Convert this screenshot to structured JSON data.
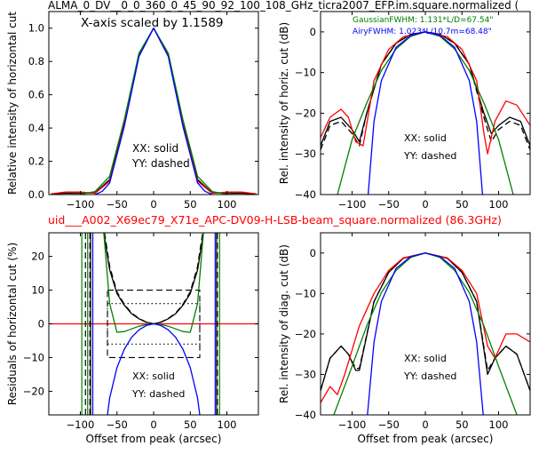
{
  "figure": {
    "top_title": "ALMA_0_DV__0_0_360_0_45_90_92_100_108_GHz_ticra2007_EFP.im.square.normalized (",
    "mid_title": "uid___A002_X69ec79_X71e_APC-DV09-H-LSB-beam_square.normalized (86.3GHz)",
    "colors": {
      "black": "#000000",
      "red": "#ff0000",
      "green": "#008000",
      "blue": "#0000ff",
      "title_red": "#ff0000"
    }
  },
  "chart_data": [
    {
      "id": "horizontal-cut",
      "type": "line",
      "ylabel": "Relative intensity of horizontal cut",
      "xlim": [
        -143,
        143
      ],
      "ylim": [
        0,
        1.1
      ],
      "xticks": [
        -100,
        -50,
        0,
        50,
        100
      ],
      "yticks": [
        0.0,
        0.2,
        0.4,
        0.6,
        0.8,
        1.0
      ],
      "xtick_labels": [
        "−100",
        "−50",
        "0",
        "50",
        "100"
      ],
      "ytick_labels": [
        "0.0",
        "0.2",
        "0.4",
        "0.6",
        "0.8",
        "1.0"
      ],
      "annotations": [
        "X-axis scaled by 1.1589",
        "XX: solid",
        "YY: dashed"
      ],
      "series": [
        {
          "color": "#000000",
          "style": "solid",
          "x": [
            -140,
            -120,
            -100,
            -80,
            -60,
            -40,
            -20,
            0,
            20,
            40,
            60,
            80,
            100,
            120,
            140
          ],
          "y": [
            0.003,
            0.008,
            0.01,
            0.01,
            0.09,
            0.43,
            0.84,
            1.0,
            0.84,
            0.43,
            0.09,
            0.01,
            0.01,
            0.008,
            0.003
          ]
        },
        {
          "color": "#ff0000",
          "style": "solid",
          "x": [
            -140,
            -120,
            -100,
            -80,
            -60,
            -40,
            -20,
            0,
            20,
            40,
            60,
            80,
            100,
            120,
            140
          ],
          "y": [
            0.005,
            0.015,
            0.015,
            0.008,
            0.08,
            0.42,
            0.84,
            1.0,
            0.84,
            0.42,
            0.08,
            0.008,
            0.015,
            0.015,
            0.005
          ]
        },
        {
          "color": "#008000",
          "style": "solid",
          "x": [
            -140,
            -120,
            -100,
            -80,
            -60,
            -40,
            -20,
            0,
            20,
            40,
            60,
            80,
            100,
            120,
            140
          ],
          "y": [
            0.0,
            0.0,
            0.002,
            0.018,
            0.11,
            0.45,
            0.85,
            1.0,
            0.85,
            0.45,
            0.11,
            0.018,
            0.002,
            0.0,
            0.0
          ]
        },
        {
          "color": "#0000ff",
          "style": "solid",
          "x": [
            -80,
            -70,
            -60,
            -40,
            -20,
            0,
            20,
            40,
            60,
            70,
            80
          ],
          "y": [
            0.0,
            0.02,
            0.07,
            0.41,
            0.83,
            1.0,
            0.83,
            0.41,
            0.07,
            0.02,
            0.0
          ]
        }
      ]
    },
    {
      "id": "horizontal-db",
      "type": "line",
      "ylabel": "Rel. intensity of horiz. cut (dB)",
      "xlim": [
        -143,
        143
      ],
      "ylim": [
        -40,
        5
      ],
      "xticks": [
        -100,
        -50,
        0,
        50,
        100
      ],
      "yticks": [
        -40,
        -30,
        -20,
        -10,
        0
      ],
      "xtick_labels": [
        "−100",
        "−50",
        "0",
        "50",
        "100"
      ],
      "ytick_labels": [
        "−40",
        "−30",
        "−20",
        "−10",
        "0"
      ],
      "annotations": [
        "GaussianFWHM: 1.131*L/D=67.54\"",
        "AiryFWHM: 1.023*L/10.7m=68.48\"",
        "XX: solid",
        "YY: dashed"
      ],
      "series": [
        {
          "color": "#000000",
          "style": "solid",
          "x": [
            -143,
            -130,
            -115,
            -100,
            -90,
            -80,
            -60,
            -40,
            -20,
            0,
            20,
            40,
            60,
            80,
            90,
            100,
            115,
            130,
            143
          ],
          "y": [
            -28,
            -22,
            -21,
            -24,
            -27,
            -20,
            -8,
            -2.8,
            -0.6,
            0,
            -0.6,
            -2.8,
            -8,
            -20,
            -25,
            -23,
            -21,
            -22,
            -28
          ]
        },
        {
          "color": "#000000",
          "style": "dashed",
          "x": [
            -143,
            -130,
            -115,
            -100,
            -90,
            -80,
            -60,
            -40,
            -20,
            0,
            20,
            40,
            60,
            80,
            90,
            100,
            115,
            130,
            143
          ],
          "y": [
            -29,
            -23,
            -22,
            -25,
            -28,
            -20,
            -8,
            -2.8,
            -0.6,
            0,
            -0.6,
            -2.8,
            -8,
            -21,
            -27,
            -24,
            -22,
            -23,
            -29
          ]
        },
        {
          "color": "#ff0000",
          "style": "solid",
          "x": [
            -143,
            -130,
            -115,
            -105,
            -95,
            -85,
            -70,
            -50,
            -30,
            0,
            30,
            50,
            70,
            80,
            85,
            95,
            110,
            125,
            143
          ],
          "y": [
            -26,
            -21,
            -19,
            -21,
            -27,
            -28,
            -12,
            -4.3,
            -1.2,
            0,
            -1.2,
            -4.3,
            -12,
            -25,
            -30,
            -22,
            -17,
            -18,
            -23
          ]
        },
        {
          "color": "#008000",
          "style": "solid",
          "x": [
            -120,
            -100,
            -80,
            -60,
            -40,
            -20,
            0,
            20,
            40,
            60,
            80,
            100,
            120
          ],
          "y": [
            -40,
            -26.5,
            -17.5,
            -9.5,
            -4.2,
            -1.1,
            0,
            -1.1,
            -4.2,
            -9.5,
            -17.5,
            -26.5,
            -40
          ]
        },
        {
          "color": "#0000ff",
          "style": "solid",
          "x": [
            -78,
            -70,
            -60,
            -40,
            -20,
            0,
            20,
            40,
            60,
            70,
            78
          ],
          "y": [
            -40,
            -22,
            -12,
            -3.8,
            -0.9,
            0,
            -0.9,
            -3.8,
            -12,
            -22,
            -40
          ]
        }
      ]
    },
    {
      "id": "horizontal-residuals",
      "type": "line",
      "ylabel": "Residuals of horizontal cut (%)",
      "xlabel": "Offset from peak (arcsec)",
      "xlim": [
        -143,
        143
      ],
      "ylim": [
        -27,
        27
      ],
      "xticks": [
        -100,
        -50,
        0,
        50,
        100
      ],
      "yticks": [
        -20,
        -10,
        0,
        10,
        20
      ],
      "xtick_labels": [
        "−100",
        "−50",
        "0",
        "50",
        "100"
      ],
      "ytick_labels": [
        "−20",
        "−10",
        "0",
        "10",
        "20"
      ],
      "annotations": [
        "XX: solid",
        "YY: dashed"
      ],
      "reference_line": {
        "color": "#ff0000",
        "y": 0
      },
      "boxes": [
        {
          "style": "dashed",
          "x": [
            -63,
            63
          ],
          "y": [
            -10,
            10
          ]
        },
        {
          "style": "dotted",
          "x": [
            -63,
            63
          ],
          "y": [
            -6,
            6
          ]
        }
      ],
      "vertical_lines": [
        {
          "color": "#000000",
          "style": "dashed",
          "x": -93
        },
        {
          "color": "#000000",
          "style": "dashed",
          "x": -87
        },
        {
          "color": "#000000",
          "style": "solid",
          "x": -86
        },
        {
          "color": "#008000",
          "style": "solid",
          "x": -98
        },
        {
          "color": "#008000",
          "style": "solid",
          "x": -90
        },
        {
          "color": "#0000ff",
          "style": "solid",
          "x": -83
        },
        {
          "color": "#000000",
          "style": "dashed",
          "x": 87
        },
        {
          "color": "#000000",
          "style": "solid",
          "x": 86
        },
        {
          "color": "#008000",
          "style": "solid",
          "x": 90
        },
        {
          "color": "#0000ff",
          "style": "solid",
          "x": 84
        }
      ],
      "series": [
        {
          "color": "#000000",
          "style": "solid",
          "x": [
            -68,
            -60,
            -50,
            -40,
            -30,
            -20,
            -10,
            0,
            10,
            20,
            30,
            40,
            50,
            60,
            68
          ],
          "y": [
            27,
            16,
            9,
            5.5,
            3,
            1.5,
            0.5,
            0,
            0.5,
            1.5,
            3,
            5.5,
            9,
            16,
            27
          ]
        },
        {
          "color": "#000000",
          "style": "dashed",
          "x": [
            -67,
            -60,
            -50,
            -40,
            -30,
            -20,
            -10,
            0,
            10,
            20,
            30,
            40,
            50,
            60,
            67
          ],
          "y": [
            27,
            17,
            9.5,
            5.8,
            3.2,
            1.6,
            0.5,
            0,
            0.5,
            1.6,
            3.2,
            5.8,
            9.5,
            17,
            27
          ]
        },
        {
          "color": "#008000",
          "style": "solid",
          "x": [
            -68,
            -60,
            -50,
            -40,
            -30,
            -20,
            -10,
            0,
            10,
            20,
            30,
            40,
            50,
            60,
            68
          ],
          "y": [
            27,
            6,
            -2.5,
            -2.3,
            -1.5,
            -0.7,
            -0.2,
            0,
            -0.2,
            -0.7,
            -1.5,
            -2.3,
            -2.5,
            6,
            27
          ]
        },
        {
          "color": "#0000ff",
          "style": "solid",
          "x": [
            -63,
            -60,
            -50,
            -40,
            -30,
            -20,
            -10,
            0,
            10,
            20,
            30,
            40,
            50,
            60,
            63
          ],
          "y": [
            -27,
            -22,
            -13,
            -7.5,
            -4,
            -1.8,
            -0.5,
            0,
            -0.5,
            -1.8,
            -4,
            -7.5,
            -13,
            -22,
            -27
          ]
        }
      ]
    },
    {
      "id": "diagonal-db",
      "type": "line",
      "ylabel": "Rel. intensity of diag. cut (dB)",
      "xlabel": "Offset from peak (arcsec)",
      "xlim": [
        -143,
        143
      ],
      "ylim": [
        -40,
        5
      ],
      "xticks": [
        -100,
        -50,
        0,
        50,
        100
      ],
      "yticks": [
        -40,
        -30,
        -20,
        -10,
        0
      ],
      "xtick_labels": [
        "−100",
        "−50",
        "0",
        "50",
        "100"
      ],
      "ytick_labels": [
        "−40",
        "−30",
        "−20",
        "−10",
        "0"
      ],
      "annotations": [
        "XX: solid",
        "YY: dashed"
      ],
      "series": [
        {
          "color": "#000000",
          "style": "solid",
          "x": [
            -143,
            -130,
            -115,
            -105,
            -95,
            -90,
            -70,
            -50,
            -30,
            0,
            30,
            50,
            70,
            85,
            95,
            110,
            125,
            143
          ],
          "y": [
            -34,
            -26,
            -23,
            -25,
            -29,
            -29,
            -12,
            -4.8,
            -1.3,
            0,
            -1.3,
            -4.8,
            -12,
            -30,
            -26,
            -23,
            -25,
            -34
          ]
        },
        {
          "color": "#000000",
          "style": "dashed",
          "x": [
            -143,
            -130,
            -115,
            -105,
            -95,
            -90,
            -70,
            -50,
            -30,
            0,
            30,
            50,
            70,
            85,
            95,
            110,
            125,
            143
          ],
          "y": [
            -34,
            -26,
            -23,
            -25,
            -28.5,
            -28.5,
            -12,
            -4.8,
            -1.3,
            0,
            -1.3,
            -4.8,
            -12,
            -29,
            -26,
            -23,
            -25,
            -34
          ]
        },
        {
          "color": "#ff0000",
          "style": "solid",
          "x": [
            -143,
            -130,
            -120,
            -110,
            -90,
            -70,
            -50,
            -30,
            0,
            30,
            50,
            70,
            85,
            95,
            110,
            125,
            143
          ],
          "y": [
            -37,
            -33,
            -35,
            -30,
            -18,
            -10,
            -4.3,
            -1.2,
            0,
            -1.2,
            -4.3,
            -10,
            -23,
            -26,
            -20,
            -20,
            -22
          ]
        },
        {
          "color": "#008000",
          "style": "solid",
          "x": [
            -125,
            -100,
            -80,
            -60,
            -40,
            -20,
            0,
            20,
            40,
            60,
            80,
            100,
            125
          ],
          "y": [
            -40,
            -28,
            -18,
            -9.8,
            -4.3,
            -1.1,
            0,
            -1.1,
            -4.3,
            -9.8,
            -18,
            -28,
            -40
          ]
        },
        {
          "color": "#0000ff",
          "style": "solid",
          "x": [
            -79,
            -70,
            -60,
            -40,
            -20,
            0,
            20,
            40,
            60,
            70,
            79
          ],
          "y": [
            -40,
            -22,
            -12,
            -3.8,
            -0.9,
            0,
            -0.9,
            -3.8,
            -12,
            -22,
            -40
          ]
        }
      ]
    }
  ]
}
